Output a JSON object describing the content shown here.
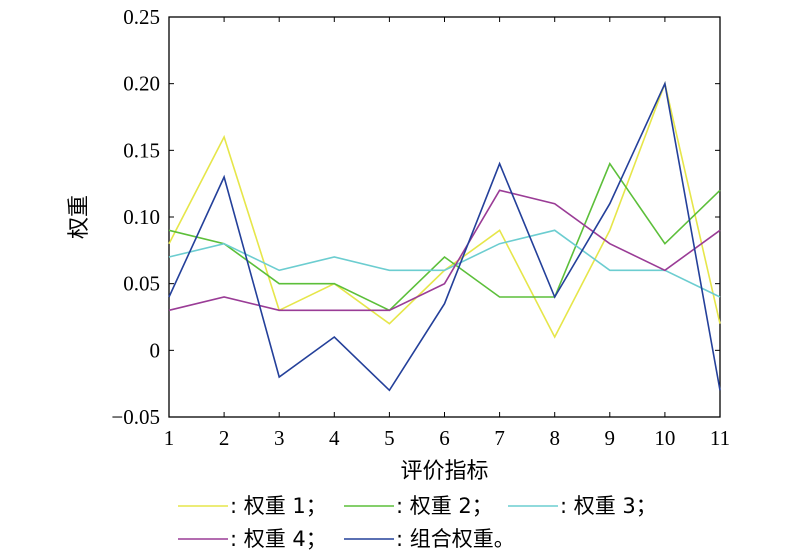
{
  "chart_data": {
    "type": "line",
    "xlabel": "评价指标",
    "ylabel": "权重",
    "x": [
      1,
      2,
      3,
      4,
      5,
      6,
      7,
      8,
      9,
      10,
      11
    ],
    "xlim": [
      1,
      11
    ],
    "ylim": [
      -0.05,
      0.25
    ],
    "x_ticks": [
      "1",
      "2",
      "3",
      "4",
      "5",
      "6",
      "7",
      "8",
      "9",
      "10",
      "11"
    ],
    "y_ticks": [
      {
        "value": 0.25,
        "label": "0.25"
      },
      {
        "value": 0.2,
        "label": "0.20"
      },
      {
        "value": 0.15,
        "label": "0.15"
      },
      {
        "value": 0.1,
        "label": "0.10"
      },
      {
        "value": 0.05,
        "label": "0.05"
      },
      {
        "value": 0.0,
        "label": "0"
      },
      {
        "value": -0.05,
        "label": "−0.05"
      }
    ],
    "grid": false,
    "legend_position": "bottom",
    "series": [
      {
        "name": ": 权重 1；",
        "color": "#e6e64a",
        "values": [
          0.08,
          0.16,
          0.03,
          0.05,
          0.02,
          0.06,
          0.09,
          0.01,
          0.09,
          0.2,
          0.02
        ]
      },
      {
        "name": ": 权重 2；",
        "color": "#5cbf3a",
        "values": [
          0.09,
          0.08,
          0.05,
          0.05,
          0.03,
          0.07,
          0.04,
          0.04,
          0.14,
          0.08,
          0.12
        ]
      },
      {
        "name": ": 权重 3；",
        "color": "#6ccdd0",
        "values": [
          0.07,
          0.08,
          0.06,
          0.07,
          0.06,
          0.06,
          0.08,
          0.09,
          0.06,
          0.06,
          0.04
        ]
      },
      {
        "name": ": 权重 4；",
        "color": "#9a3c96",
        "values": [
          0.03,
          0.04,
          0.03,
          0.03,
          0.03,
          0.05,
          0.12,
          0.11,
          0.08,
          0.06,
          0.09
        ]
      },
      {
        "name": ": 组合权重。",
        "color": "#24409a",
        "values": [
          0.04,
          0.13,
          -0.02,
          0.01,
          -0.03,
          0.035,
          0.14,
          0.04,
          0.11,
          0.2,
          -0.03
        ]
      }
    ]
  }
}
